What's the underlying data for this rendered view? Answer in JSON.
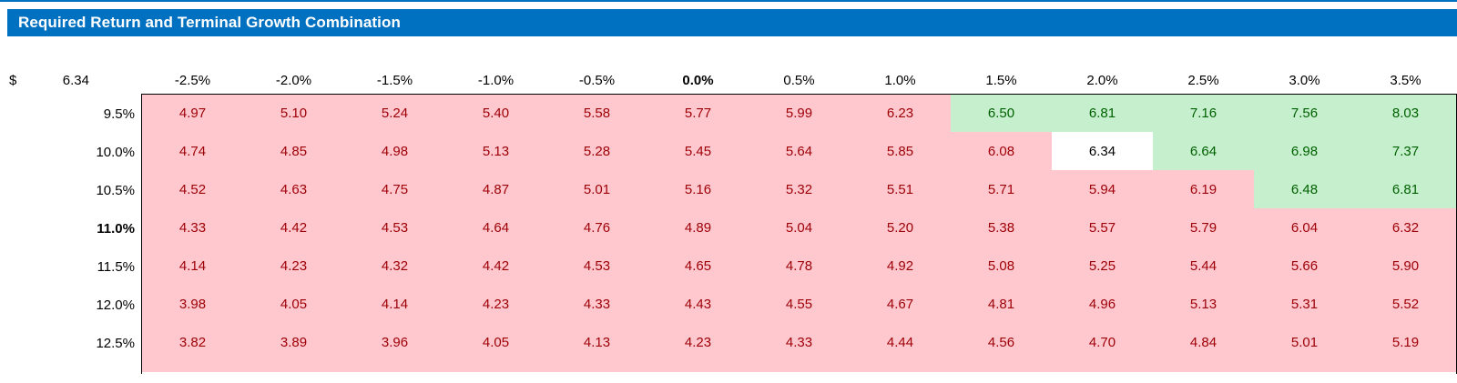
{
  "title": "Required Return and Terminal Growth Combination",
  "colors": {
    "title_bar_blue": "#0070C0",
    "below_base_bg": "#FFC7CE",
    "below_base_text": "#9C0006",
    "above_base_bg": "#C6EFCE",
    "above_base_text": "#006100",
    "base_cell_bg": "#FFFFFF",
    "base_cell_text": "#000000"
  },
  "header": {
    "currency_symbol": "$",
    "base_value": "6.34",
    "growth_columns": [
      "-2.5%",
      "-2.0%",
      "-1.5%",
      "-1.0%",
      "-0.5%",
      "0.0%",
      "0.5%",
      "1.0%",
      "1.5%",
      "2.0%",
      "2.5%",
      "3.0%",
      "3.5%"
    ],
    "bold_column_index": 5
  },
  "rows": [
    {
      "label": "9.5%",
      "bold": false,
      "values": [
        "4.97",
        "5.10",
        "5.24",
        "5.40",
        "5.58",
        "5.77",
        "5.99",
        "6.23",
        "6.50",
        "6.81",
        "7.16",
        "7.56",
        "8.03"
      ]
    },
    {
      "label": "10.0%",
      "bold": false,
      "values": [
        "4.74",
        "4.85",
        "4.98",
        "5.13",
        "5.28",
        "5.45",
        "5.64",
        "5.85",
        "6.08",
        "6.34",
        "6.64",
        "6.98",
        "7.37"
      ]
    },
    {
      "label": "10.5%",
      "bold": false,
      "values": [
        "4.52",
        "4.63",
        "4.75",
        "4.87",
        "5.01",
        "5.16",
        "5.32",
        "5.51",
        "5.71",
        "5.94",
        "6.19",
        "6.48",
        "6.81"
      ]
    },
    {
      "label": "11.0%",
      "bold": true,
      "values": [
        "4.33",
        "4.42",
        "4.53",
        "4.64",
        "4.76",
        "4.89",
        "5.04",
        "5.20",
        "5.38",
        "5.57",
        "5.79",
        "6.04",
        "6.32"
      ]
    },
    {
      "label": "11.5%",
      "bold": false,
      "values": [
        "4.14",
        "4.23",
        "4.32",
        "4.42",
        "4.53",
        "4.65",
        "4.78",
        "4.92",
        "5.08",
        "5.25",
        "5.44",
        "5.66",
        "5.90"
      ]
    },
    {
      "label": "12.0%",
      "bold": false,
      "values": [
        "3.98",
        "4.05",
        "4.14",
        "4.23",
        "4.33",
        "4.43",
        "4.55",
        "4.67",
        "4.81",
        "4.96",
        "5.13",
        "5.31",
        "5.52"
      ]
    },
    {
      "label": "12.5%",
      "bold": false,
      "values": [
        "3.82",
        "3.89",
        "3.96",
        "4.05",
        "4.13",
        "4.23",
        "4.33",
        "4.44",
        "4.56",
        "4.70",
        "4.84",
        "5.01",
        "5.19"
      ]
    }
  ]
}
